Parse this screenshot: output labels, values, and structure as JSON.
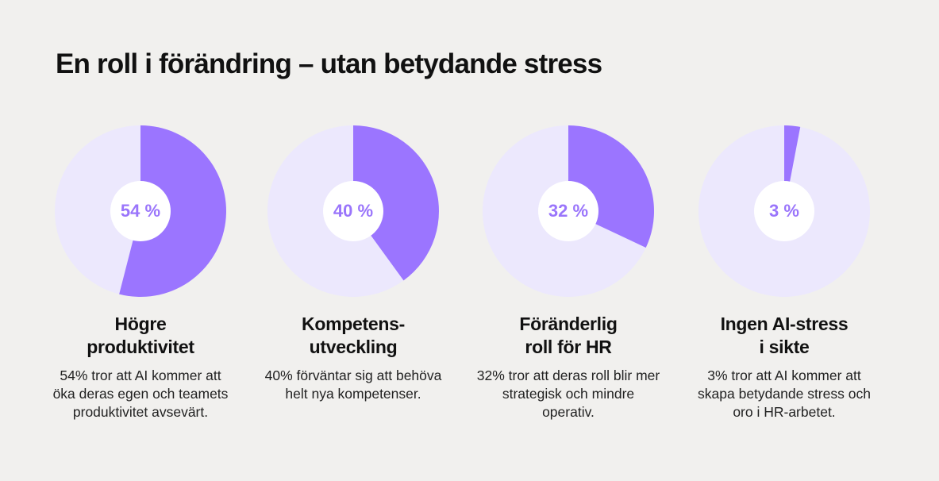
{
  "title": "En roll i förändring – utan betydande stress",
  "colors": {
    "accent": "#9b75ff",
    "light": "#ece8fd",
    "hub": "#ffffff",
    "pct_text": "#9a75fb"
  },
  "chart_data": [
    {
      "type": "pie",
      "value": 54,
      "label": "54 %",
      "heading": "Högre\nproduktivitet",
      "description": "54% tror att AI kommer att öka deras egen och teamets produktivitet avsevärt."
    },
    {
      "type": "pie",
      "value": 40,
      "label": "40 %",
      "heading": "Kompetens-\nutveckling",
      "description": "40% förväntar sig att behöva helt nya kompetenser."
    },
    {
      "type": "pie",
      "value": 32,
      "label": "32 %",
      "heading": "Föränderlig\nroll för HR",
      "description": "32% tror att deras roll blir mer strategisk och mindre operativ."
    },
    {
      "type": "pie",
      "value": 3,
      "label": "3 %",
      "heading": "Ingen AI-stress\ni sikte",
      "description": "3% tror att AI kommer att skapa betydande stress och oro i HR-arbetet."
    }
  ]
}
